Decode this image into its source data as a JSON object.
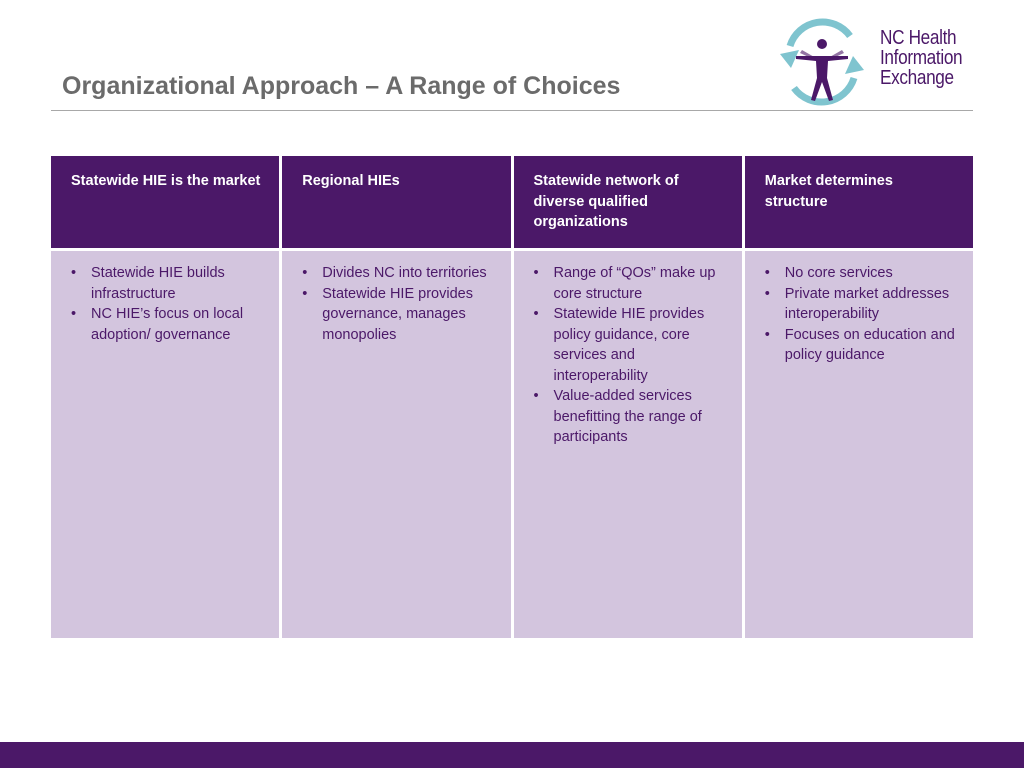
{
  "slide": {
    "title": "Organizational Approach – A Range of Choices"
  },
  "logo": {
    "lines": [
      "NC Health",
      "Information",
      "Exchange"
    ]
  },
  "colors": {
    "header_purple": "#4b1868",
    "body_lavender": "#d3c5de",
    "title_gray": "#6b6b6b",
    "logo_teal": "#7fc4cf"
  },
  "choices": [
    {
      "header": "Statewide HIE is the market",
      "bullets": [
        "Statewide HIE builds infrastructure",
        "NC HIE’s focus on local adoption/ governance"
      ]
    },
    {
      "header": "Regional HIEs",
      "bullets": [
        "Divides NC into territories",
        "Statewide HIE provides governance, manages monopolies"
      ]
    },
    {
      "header": "Statewide network of diverse qualified organizations",
      "bullets": [
        "Range of “QOs” make up core structure",
        "Statewide HIE provides policy guidance, core services and interoperability",
        "Value-added services benefitting the range of participants"
      ]
    },
    {
      "header": "Market determines structure",
      "bullets": [
        "No core services",
        "Private market addresses interoperability",
        "Focuses on education and policy guidance"
      ]
    }
  ]
}
